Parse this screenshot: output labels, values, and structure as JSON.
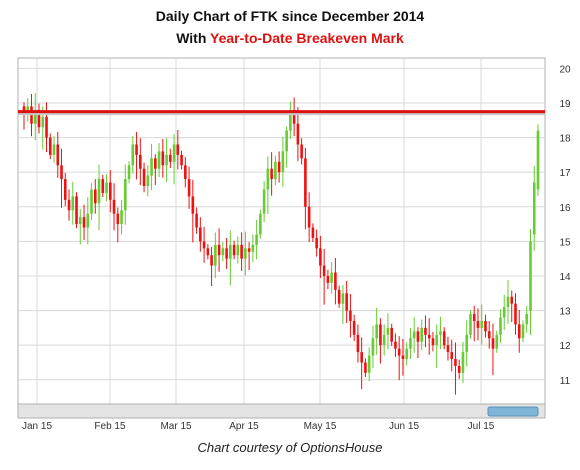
{
  "titles": {
    "line1": "Daily Chart of FTK since December 2014",
    "line2_prefix": "With ",
    "line2_highlight": "Year-to-Date Breakeven Mark"
  },
  "credit": "Chart courtesy of OptionsHouse",
  "colors": {
    "up": "#66cc33",
    "down": "#ee1111",
    "breakeven": "#dd1111",
    "grid": "#d8d8d8"
  },
  "chart_data": {
    "type": "candlestick",
    "title": "Daily Chart of FTK since December 2014",
    "subtitle": "With Year-to-Date Breakeven Mark",
    "x_tick_labels": [
      "Jan 15",
      "Feb 15",
      "Mar 15",
      "Apr 15",
      "May 15",
      "Jun 15",
      "Jul 15"
    ],
    "y_ticks": [
      11,
      12,
      13,
      14,
      15,
      16,
      17,
      18,
      19,
      20
    ],
    "ylim": [
      10.3,
      20.3
    ],
    "grid": true,
    "breakeven_level": 18.75,
    "closes": [
      18.7,
      18.9,
      18.4,
      18.8,
      18.3,
      18.6,
      18.0,
      17.5,
      17.8,
      17.2,
      16.8,
      16.2,
      15.9,
      16.3,
      15.5,
      15.7,
      15.4,
      15.8,
      16.5,
      16.1,
      16.8,
      16.4,
      16.7,
      16.2,
      15.8,
      15.5,
      15.9,
      16.8,
      17.2,
      17.8,
      17.5,
      17.1,
      16.6,
      16.9,
      17.4,
      17.1,
      17.6,
      17.2,
      17.5,
      17.3,
      17.8,
      17.5,
      17.2,
      16.8,
      16.3,
      15.8,
      15.4,
      15.0,
      14.8,
      14.6,
      14.3,
      14.9,
      14.6,
      14.8,
      14.5,
      14.9,
      14.6,
      14.9,
      14.5,
      14.8,
      14.7,
      14.9,
      15.2,
      15.8,
      16.5,
      17.1,
      16.8,
      17.3,
      17.0,
      17.6,
      18.2,
      18.8,
      18.4,
      17.8,
      17.4,
      16.0,
      15.4,
      15.1,
      14.8,
      14.3,
      14.0,
      13.8,
      14.1,
      13.6,
      13.2,
      13.5,
      13.0,
      12.7,
      12.3,
      11.8,
      11.5,
      11.2,
      11.7,
      12.2,
      12.6,
      12.0,
      12.3,
      12.5,
      12.1,
      11.9,
      11.7,
      11.6,
      11.9,
      12.2,
      12.4,
      12.1,
      12.5,
      12.3,
      12.2,
      12.0,
      12.3,
      12.4,
      12.0,
      11.8,
      11.6,
      11.4,
      11.2,
      11.8,
      12.3,
      12.9,
      12.7,
      12.5,
      12.7,
      12.4,
      12.2,
      11.9,
      12.3,
      12.8,
      13.1,
      13.4,
      13.2,
      12.6,
      12.2,
      12.6,
      12.9,
      15.0,
      16.7,
      18.2
    ]
  }
}
